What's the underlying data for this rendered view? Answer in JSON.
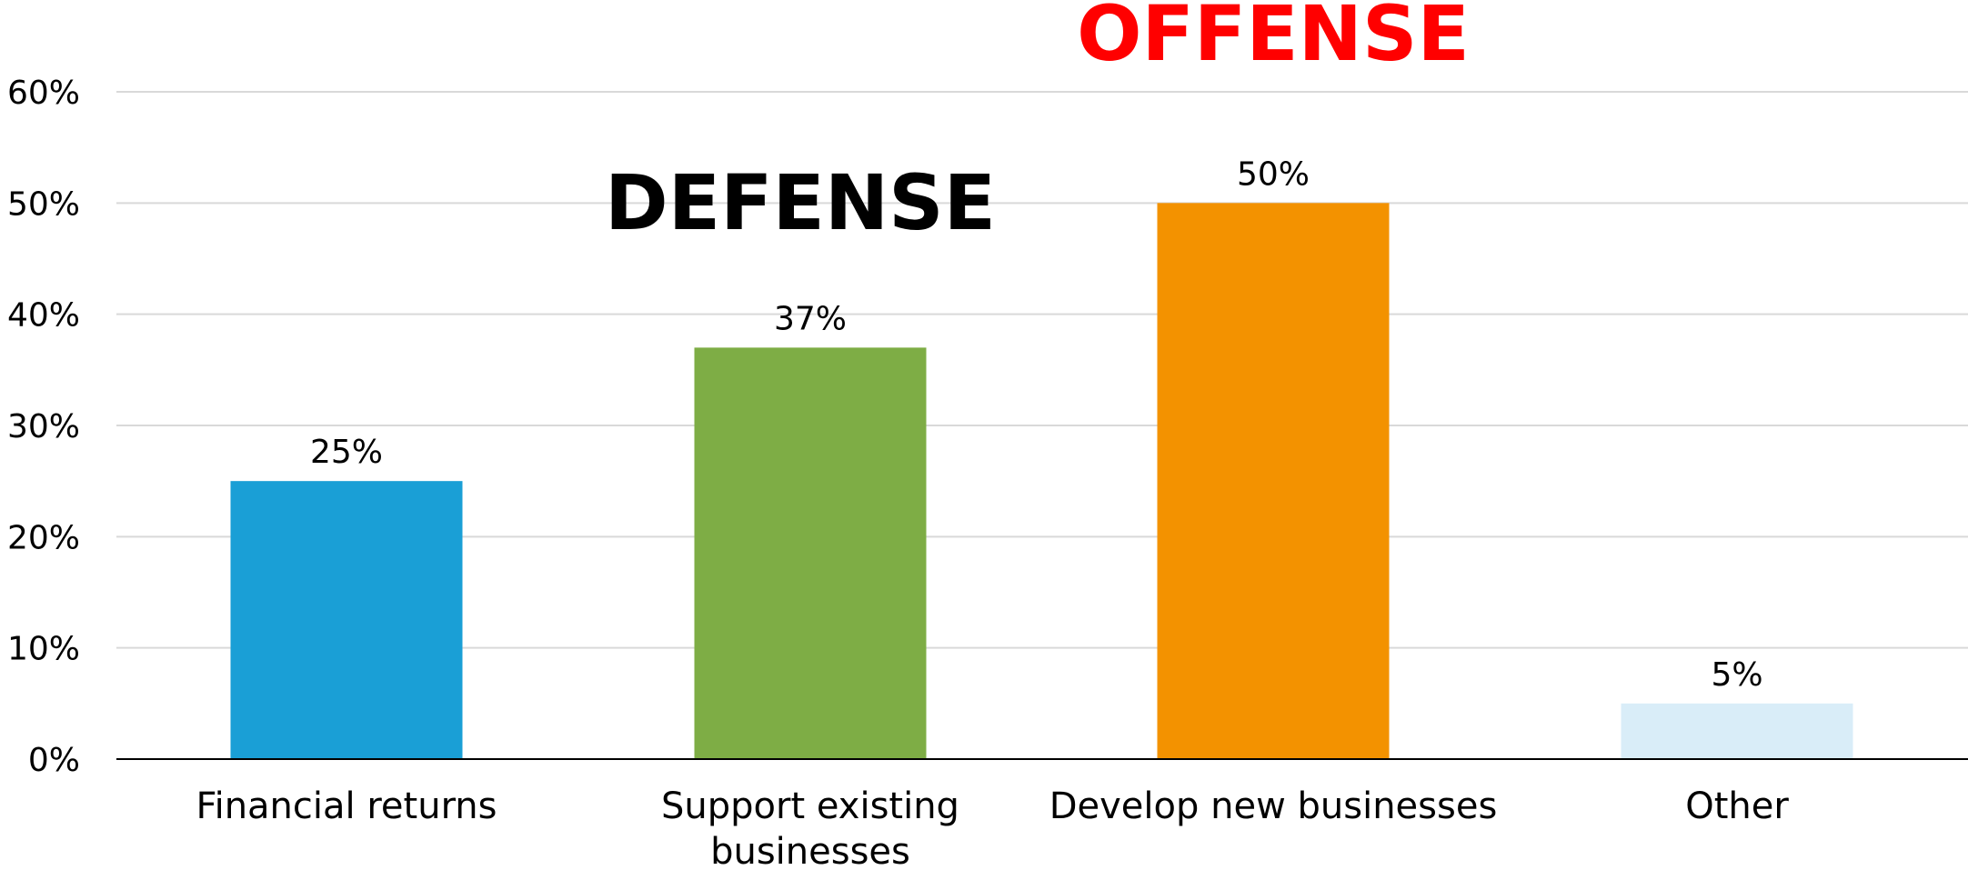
{
  "chart_data": {
    "type": "bar",
    "categories": [
      "Financial returns",
      "Support existing businesses",
      "Develop new businesses",
      "Other"
    ],
    "category_lines": [
      [
        "Financial returns"
      ],
      [
        "Support existing",
        "businesses"
      ],
      [
        "Develop new businesses"
      ],
      [
        "Other"
      ]
    ],
    "values": [
      25,
      37,
      50,
      5
    ],
    "data_labels": [
      "25%",
      "37%",
      "50%",
      "5%"
    ],
    "bar_colors": [
      "#1A9FD6",
      "#7EAD45",
      "#F39200",
      "#D9EDF8"
    ],
    "ylim": [
      0,
      60
    ],
    "yticks": [
      0,
      10,
      20,
      30,
      40,
      50,
      60
    ],
    "ytick_labels": [
      "0%",
      "10%",
      "20%",
      "30%",
      "40%",
      "50%",
      "60%"
    ],
    "grid": true,
    "title": "",
    "xlabel": "",
    "ylabel": "",
    "annotations": [
      {
        "text": "DEFENSE",
        "color": "#000000",
        "category": "Support existing businesses"
      },
      {
        "text": "OFFENSE",
        "color": "#FF0000",
        "category": "Develop new businesses"
      }
    ]
  }
}
